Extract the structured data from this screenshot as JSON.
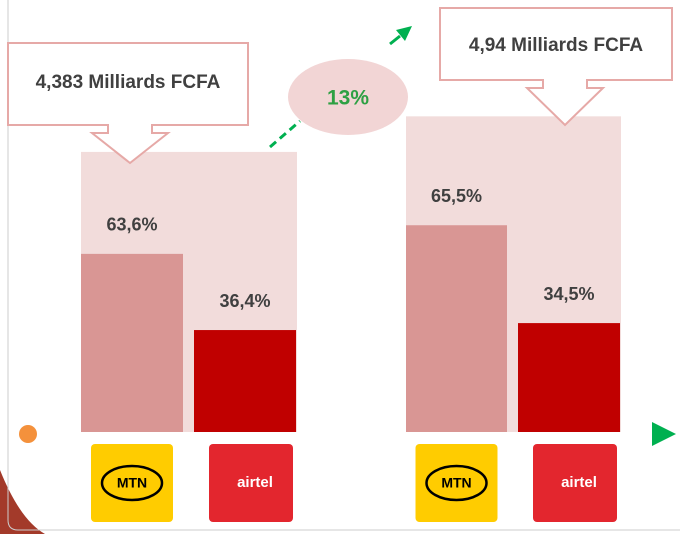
{
  "chart_data": {
    "type": "bar",
    "categories": [
      "MTN",
      "airtel"
    ],
    "colors": [
      "#d99694",
      "#c00000"
    ],
    "groups": [
      {
        "total": 4.383,
        "total_label": "4,383 Milliards FCFA",
        "values": [
          63.6,
          36.4
        ],
        "value_labels": [
          "63,6%",
          "36,4%"
        ]
      },
      {
        "total": 4.94,
        "total_label": "4,94 Milliards FCFA",
        "values": [
          65.5,
          34.5
        ],
        "value_labels": [
          "65,5%",
          "34,5%"
        ]
      }
    ],
    "growth_label": "13%"
  }
}
